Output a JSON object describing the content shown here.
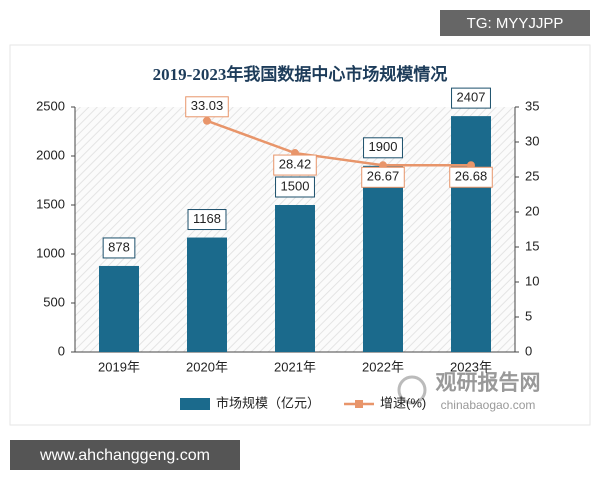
{
  "chart_data": {
    "type": "bar-line",
    "title": "2019-2023年我国数据中心市场规模情况",
    "categories": [
      "2019年",
      "2020年",
      "2021年",
      "2022年",
      "2023年"
    ],
    "series": [
      {
        "name": "市场规模（亿元）",
        "type": "bar",
        "color": "#1b6a8c",
        "values": [
          878,
          1168,
          1500,
          1900,
          2407
        ]
      },
      {
        "name": "增速(%)",
        "type": "line",
        "axis": "y2",
        "color": "#e8956a",
        "values": [
          null,
          33.03,
          28.42,
          26.67,
          26.68
        ]
      }
    ],
    "ylim": [
      0,
      2500
    ],
    "yticks": [
      0,
      500,
      1000,
      1500,
      2000,
      2500
    ],
    "y2lim": [
      0,
      35
    ],
    "y2ticks": [
      0,
      5,
      10,
      15,
      20,
      25,
      30,
      35
    ],
    "grid": false,
    "legend": "bottom"
  },
  "watermarks": {
    "top_right": "TG: MYYJJPP",
    "bottom_left": "www.ahchanggeng.com",
    "logo": "观研报告网",
    "logo_url": "chinabaogao.com"
  }
}
